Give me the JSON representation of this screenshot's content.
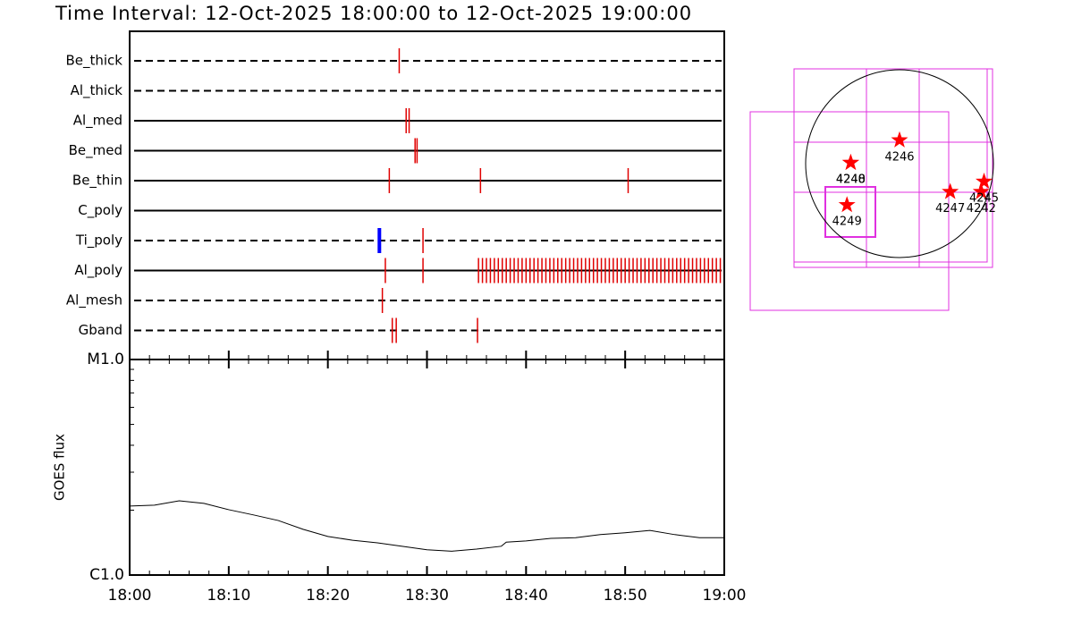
{
  "title": "Time Interval: 12-Oct-2025 18:00:00 to 12-Oct-2025 19:00:00",
  "chart_data": [
    {
      "type": "timeline",
      "xlim": [
        0,
        60
      ],
      "mark_color": "#e00000",
      "rows": [
        {
          "name": "Be_thick",
          "style": "dashed",
          "times": [
            27.2
          ]
        },
        {
          "name": "Al_thick",
          "style": "dashed",
          "times": []
        },
        {
          "name": "Al_med",
          "style": "solid",
          "times": [
            27.9,
            28.2
          ]
        },
        {
          "name": "Be_med",
          "style": "solid",
          "times": [
            28.8,
            29.0
          ]
        },
        {
          "name": "Be_thin",
          "style": "solid",
          "times": [
            26.2,
            35.4,
            50.3
          ]
        },
        {
          "name": "C_poly",
          "style": "solid",
          "times": []
        },
        {
          "name": "Ti_poly",
          "style": "dashed",
          "times": [
            25.2,
            29.6
          ],
          "colors": [
            "#0000ff",
            "#e00000"
          ]
        },
        {
          "name": "Al_poly",
          "style": "solid",
          "times": [
            25.8,
            29.6,
            35.2,
            35.6,
            36.0,
            36.4,
            36.8,
            37.2,
            37.6,
            38.0,
            38.4,
            38.8,
            39.2,
            39.6,
            40.0,
            40.4,
            40.8,
            41.2,
            41.6,
            42.0,
            42.4,
            42.8,
            43.2,
            43.6,
            44.0,
            44.4,
            44.8,
            45.2,
            45.6,
            46.0,
            46.4,
            46.8,
            47.2,
            47.6,
            48.0,
            48.4,
            48.8,
            49.2,
            49.6,
            50.0,
            50.4,
            50.8,
            51.2,
            51.6,
            52.0,
            52.4,
            52.8,
            53.2,
            53.6,
            54.0,
            54.4,
            54.8,
            55.2,
            55.6,
            56.0,
            56.4,
            56.8,
            57.2,
            57.6,
            58.0,
            58.4,
            58.8,
            59.2,
            59.6
          ]
        },
        {
          "name": "Al_mesh",
          "style": "dashed",
          "times": [
            25.5
          ]
        },
        {
          "name": "Gband",
          "style": "dashed",
          "times": [
            26.5,
            26.9,
            35.1
          ]
        }
      ]
    },
    {
      "type": "line",
      "y_label": "GOES flux",
      "log_y": true,
      "color": "#000000",
      "xlim": [
        0,
        60
      ],
      "xticks": [
        {
          "value": 0,
          "label": "18:00"
        },
        {
          "value": 10,
          "label": "18:10"
        },
        {
          "value": 20,
          "label": "18:20"
        },
        {
          "value": 30,
          "label": "18:30"
        },
        {
          "value": 40,
          "label": "18:40"
        },
        {
          "value": 50,
          "label": "18:50"
        },
        {
          "value": 60,
          "label": "19:00"
        }
      ],
      "x_minor_step": 2,
      "ylim": [
        1e-06,
        1e-05
      ],
      "yticks": [
        {
          "value": 1e-06,
          "label": "C1.0"
        },
        {
          "value": 1e-05,
          "label": "M1.0"
        }
      ],
      "x": [
        0,
        2.5,
        5,
        7.5,
        10,
        12.5,
        15,
        17.5,
        20,
        22.5,
        25,
        27.5,
        30,
        32.5,
        35,
        37.5,
        38,
        40,
        42.5,
        45,
        47.5,
        50,
        52.5,
        55,
        57.5,
        60
      ],
      "values": [
        2.09e-06,
        2.11e-06,
        2.21e-06,
        2.15e-06,
        2.01e-06,
        1.9e-06,
        1.79e-06,
        1.63e-06,
        1.51e-06,
        1.45e-06,
        1.41e-06,
        1.36e-06,
        1.31e-06,
        1.29e-06,
        1.32e-06,
        1.36e-06,
        1.42e-06,
        1.44e-06,
        1.48e-06,
        1.49e-06,
        1.54e-06,
        1.57e-06,
        1.61e-06,
        1.54e-06,
        1.49e-06,
        1.49e-06
      ]
    },
    {
      "type": "scatter",
      "marker": "star",
      "color": "#ff0000",
      "points": [
        {
          "label": "4246",
          "x": 0.0,
          "y": 0.25
        },
        {
          "label": "4240",
          "x": -0.52,
          "y": 0.01
        },
        {
          "label": "4248",
          "x": -0.52,
          "y": 0.01
        },
        {
          "label": "4249",
          "x": -0.56,
          "y": -0.44
        },
        {
          "label": "4247",
          "x": 0.54,
          "y": -0.3
        },
        {
          "label": "4242",
          "x": 0.87,
          "y": -0.3
        },
        {
          "label": "4245",
          "x": 0.9,
          "y": -0.19
        }
      ]
    }
  ]
}
